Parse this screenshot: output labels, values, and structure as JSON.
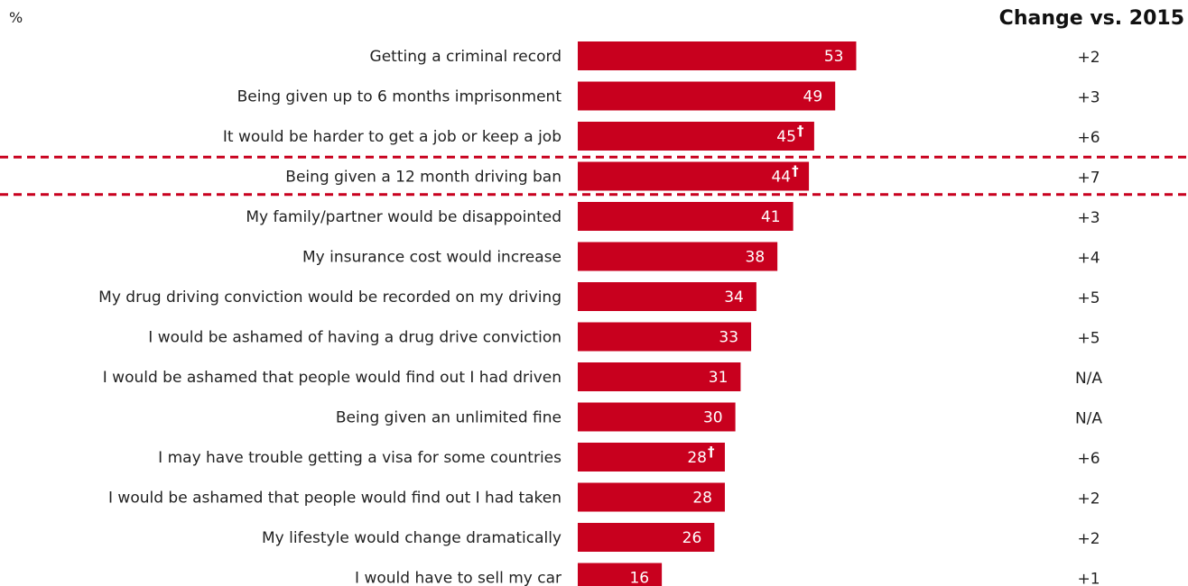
{
  "unit_label": "%",
  "change_header": "Change vs. 2015",
  "colors": {
    "bar": "#C8001E",
    "bar_label": "#ffffff",
    "highlight_line": "#C8001E",
    "text": "#222222"
  },
  "chart_data": {
    "type": "bar",
    "orientation": "horizontal",
    "categories": [
      "Getting a criminal record",
      "Being given up to 6 months imprisonment",
      "It would be harder to get a job or keep a job",
      "Being given a 12 month driving ban",
      "My family/partner would be disappointed",
      "My insurance cost would increase",
      "My drug driving conviction would be recorded on my driving",
      "I would be ashamed of having a drug drive conviction",
      "I would be ashamed that people would find out I had driven",
      "Being given an unlimited fine",
      "I may have trouble getting a visa for some countries",
      "I would be ashamed that people would find out I had taken",
      "My lifestyle would change dramatically",
      "I would have to sell my car"
    ],
    "values": [
      53,
      49,
      45,
      44,
      41,
      38,
      34,
      33,
      31,
      30,
      28,
      28,
      26,
      16
    ],
    "dagger": [
      false,
      false,
      true,
      true,
      false,
      false,
      false,
      false,
      false,
      false,
      true,
      false,
      false,
      false
    ],
    "dagger_symbol": "†",
    "change": [
      "+2",
      "+3",
      "+6",
      "+7",
      "+3",
      "+4",
      "+5",
      "+5",
      "N/A",
      "N/A",
      "+6",
      "+2",
      "+2",
      "+1"
    ],
    "highlighted_category": "Being given a 12 month driving ban",
    "xlim": [
      0,
      100
    ],
    "grid": false,
    "legend": "none"
  }
}
